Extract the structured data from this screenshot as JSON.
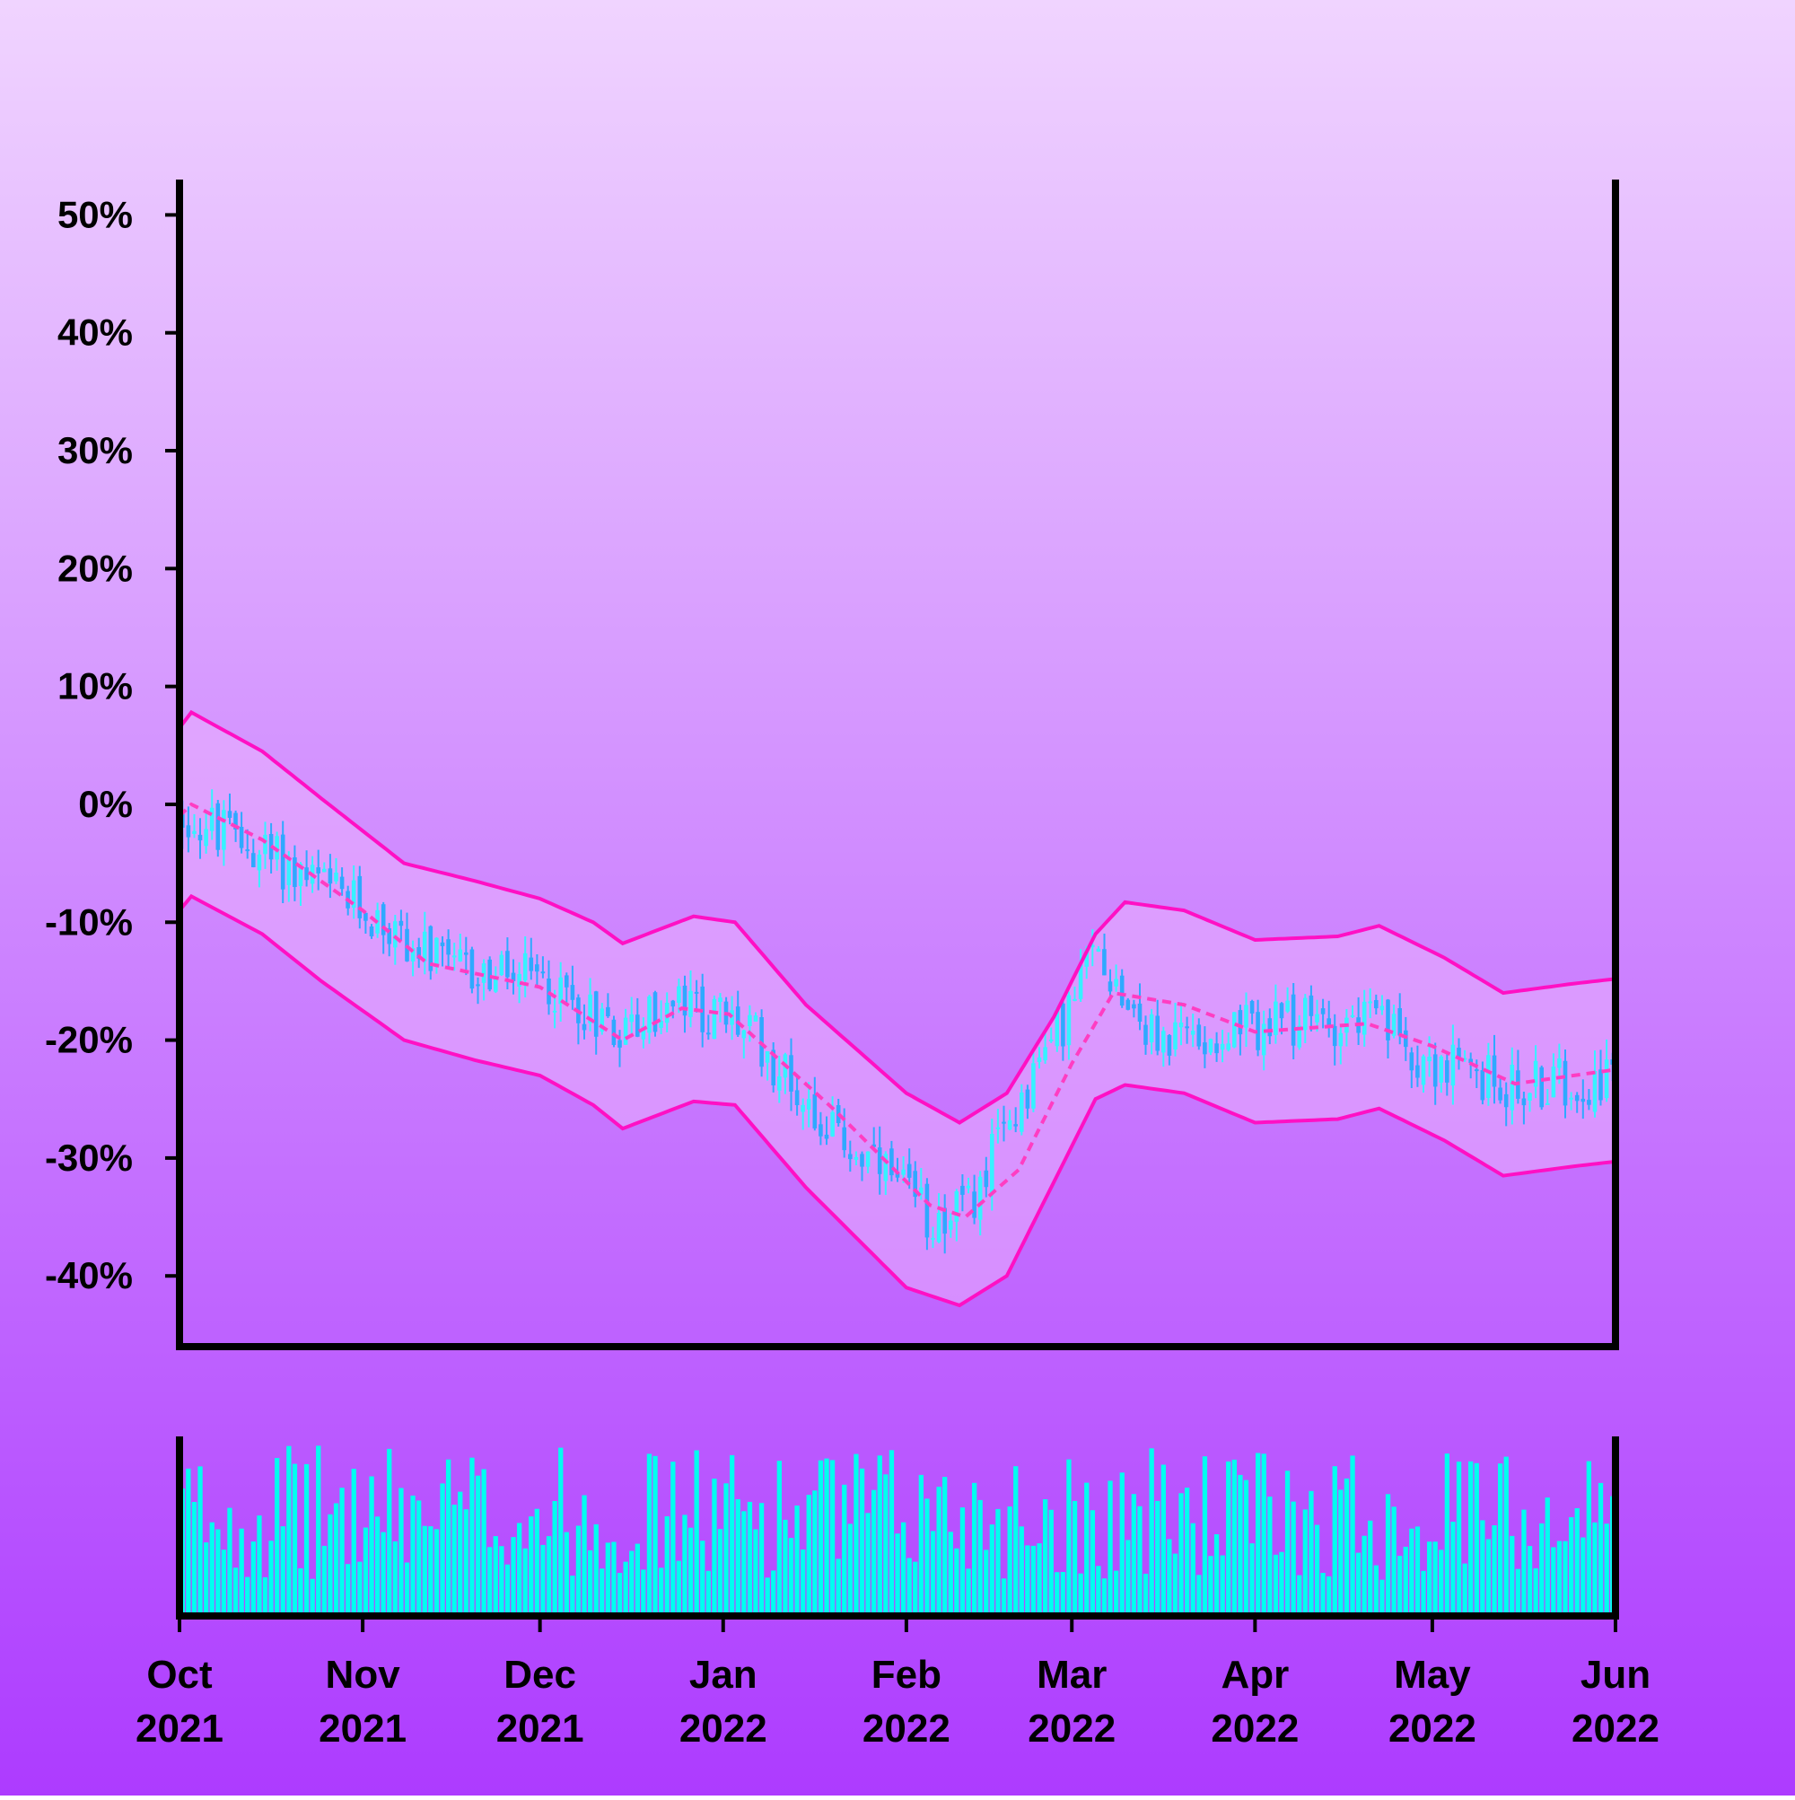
{
  "chart_data": {
    "type": "candlestick",
    "x_start": "2021-10-01",
    "x_end": "2022-06-01",
    "xlim": [
      "2021-10-01",
      "2022-06-01"
    ],
    "ylim": [
      -46,
      53
    ],
    "yticks": [
      50,
      40,
      30,
      20,
      10,
      0,
      -10,
      -20,
      -30,
      -40
    ],
    "ytick_labels": [
      "50%",
      "40%",
      "30%",
      "20%",
      "10%",
      "0%",
      "-10%",
      "-20%",
      "-30%",
      "-40%"
    ],
    "xticks": [
      "2021-10-01",
      "2021-11-01",
      "2021-12-01",
      "2022-01-01",
      "2022-02-01",
      "2022-03-01",
      "2022-04-01",
      "2022-05-01",
      "2022-06-01"
    ],
    "xtick_labels": [
      {
        "month": "Oct",
        "year": "2021"
      },
      {
        "month": "Nov",
        "year": "2021"
      },
      {
        "month": "Dec",
        "year": "2021"
      },
      {
        "month": "Jan",
        "year": "2022"
      },
      {
        "month": "Feb",
        "year": "2022"
      },
      {
        "month": "Mar",
        "year": "2022"
      },
      {
        "month": "Apr",
        "year": "2022"
      },
      {
        "month": "May",
        "year": "2022"
      },
      {
        "month": "Jun",
        "year": "2022"
      }
    ],
    "price_anchors": [
      {
        "date": "2021-10-01",
        "value": -1
      },
      {
        "date": "2021-10-15",
        "value": -4
      },
      {
        "date": "2021-11-01",
        "value": -9
      },
      {
        "date": "2021-11-15",
        "value": -14
      },
      {
        "date": "2021-12-01",
        "value": -15
      },
      {
        "date": "2021-12-15",
        "value": -19
      },
      {
        "date": "2021-12-25",
        "value": -17
      },
      {
        "date": "2022-01-05",
        "value": -19
      },
      {
        "date": "2022-01-20",
        "value": -28
      },
      {
        "date": "2022-02-05",
        "value": -35
      },
      {
        "date": "2022-02-12",
        "value": -34
      },
      {
        "date": "2022-02-20",
        "value": -25
      },
      {
        "date": "2022-03-01",
        "value": -17
      },
      {
        "date": "2022-03-05",
        "value": -12
      },
      {
        "date": "2022-03-15",
        "value": -20
      },
      {
        "date": "2022-04-01",
        "value": -19
      },
      {
        "date": "2022-04-20",
        "value": -18
      },
      {
        "date": "2022-05-01",
        "value": -22
      },
      {
        "date": "2022-05-15",
        "value": -24
      },
      {
        "date": "2022-06-01",
        "value": -23
      }
    ],
    "bollinger": {
      "middle": [
        {
          "date": "2021-10-01",
          "value": -1
        },
        {
          "date": "2021-10-03",
          "value": 0
        },
        {
          "date": "2021-10-15",
          "value": -3
        },
        {
          "date": "2021-11-01",
          "value": -9
        },
        {
          "date": "2021-11-12",
          "value": -13.5
        },
        {
          "date": "2021-12-01",
          "value": -15.5
        },
        {
          "date": "2021-12-15",
          "value": -20
        },
        {
          "date": "2021-12-25",
          "value": -17.3
        },
        {
          "date": "2022-01-02",
          "value": -17.8
        },
        {
          "date": "2022-01-20",
          "value": -26
        },
        {
          "date": "2022-02-05",
          "value": -34
        },
        {
          "date": "2022-02-11",
          "value": -35
        },
        {
          "date": "2022-02-20",
          "value": -31
        },
        {
          "date": "2022-03-01",
          "value": -22
        },
        {
          "date": "2022-03-08",
          "value": -16
        },
        {
          "date": "2022-03-20",
          "value": -17
        },
        {
          "date": "2022-04-01",
          "value": -19.3
        },
        {
          "date": "2022-04-20",
          "value": -18.6
        },
        {
          "date": "2022-05-01",
          "value": -20.5
        },
        {
          "date": "2022-05-15",
          "value": -23.7
        },
        {
          "date": "2022-06-01",
          "value": -22.5
        }
      ],
      "upper": [
        {
          "date": "2021-10-01",
          "value": 6.5
        },
        {
          "date": "2021-10-03",
          "value": 7.8
        },
        {
          "date": "2021-10-15",
          "value": 4.5
        },
        {
          "date": "2021-10-25",
          "value": 0.5
        },
        {
          "date": "2021-11-08",
          "value": -5
        },
        {
          "date": "2021-11-20",
          "value": -6.5
        },
        {
          "date": "2021-12-01",
          "value": -8
        },
        {
          "date": "2021-12-10",
          "value": -10
        },
        {
          "date": "2021-12-15",
          "value": -11.8
        },
        {
          "date": "2021-12-27",
          "value": -9.5
        },
        {
          "date": "2022-01-03",
          "value": -10
        },
        {
          "date": "2022-01-15",
          "value": -17
        },
        {
          "date": "2022-02-01",
          "value": -24.5
        },
        {
          "date": "2022-02-10",
          "value": -27
        },
        {
          "date": "2022-02-18",
          "value": -24.5
        },
        {
          "date": "2022-02-26",
          "value": -18
        },
        {
          "date": "2022-03-05",
          "value": -11
        },
        {
          "date": "2022-03-10",
          "value": -8.3
        },
        {
          "date": "2022-03-20",
          "value": -9
        },
        {
          "date": "2022-04-01",
          "value": -11.5
        },
        {
          "date": "2022-04-15",
          "value": -11.2
        },
        {
          "date": "2022-04-22",
          "value": -10.3
        },
        {
          "date": "2022-05-03",
          "value": -13
        },
        {
          "date": "2022-05-13",
          "value": -16
        },
        {
          "date": "2022-05-25",
          "value": -15.2
        },
        {
          "date": "2022-06-01",
          "value": -14.8
        }
      ],
      "lower": [
        {
          "date": "2021-10-01",
          "value": -9
        },
        {
          "date": "2021-10-03",
          "value": -7.8
        },
        {
          "date": "2021-10-15",
          "value": -11
        },
        {
          "date": "2021-10-25",
          "value": -15
        },
        {
          "date": "2021-11-08",
          "value": -20
        },
        {
          "date": "2021-11-20",
          "value": -21.7
        },
        {
          "date": "2021-12-01",
          "value": -23
        },
        {
          "date": "2021-12-10",
          "value": -25.5
        },
        {
          "date": "2021-12-15",
          "value": -27.5
        },
        {
          "date": "2021-12-27",
          "value": -25.2
        },
        {
          "date": "2022-01-03",
          "value": -25.5
        },
        {
          "date": "2022-01-15",
          "value": -32.5
        },
        {
          "date": "2022-02-01",
          "value": -41
        },
        {
          "date": "2022-02-10",
          "value": -42.5
        },
        {
          "date": "2022-02-18",
          "value": -40
        },
        {
          "date": "2022-02-26",
          "value": -32
        },
        {
          "date": "2022-03-05",
          "value": -25
        },
        {
          "date": "2022-03-10",
          "value": -23.8
        },
        {
          "date": "2022-03-20",
          "value": -24.5
        },
        {
          "date": "2022-04-01",
          "value": -27
        },
        {
          "date": "2022-04-15",
          "value": -26.7
        },
        {
          "date": "2022-04-22",
          "value": -25.8
        },
        {
          "date": "2022-05-03",
          "value": -28.5
        },
        {
          "date": "2022-05-13",
          "value": -31.5
        },
        {
          "date": "2022-05-25",
          "value": -30.7
        },
        {
          "date": "2022-06-01",
          "value": -30.3
        }
      ]
    },
    "grid": false,
    "legend": "none"
  },
  "colors": {
    "background_top": "#f0d4ff",
    "background_bottom": "#ad3bff",
    "band_fill": "#e9b0ff",
    "band_line": "#ff10c4",
    "middle_line": "#ff3dc2",
    "candle_up": "#36f2ff",
    "candle_down": "#2ea9ff",
    "volume_bar": "#00fff0",
    "axis": "#000000"
  }
}
